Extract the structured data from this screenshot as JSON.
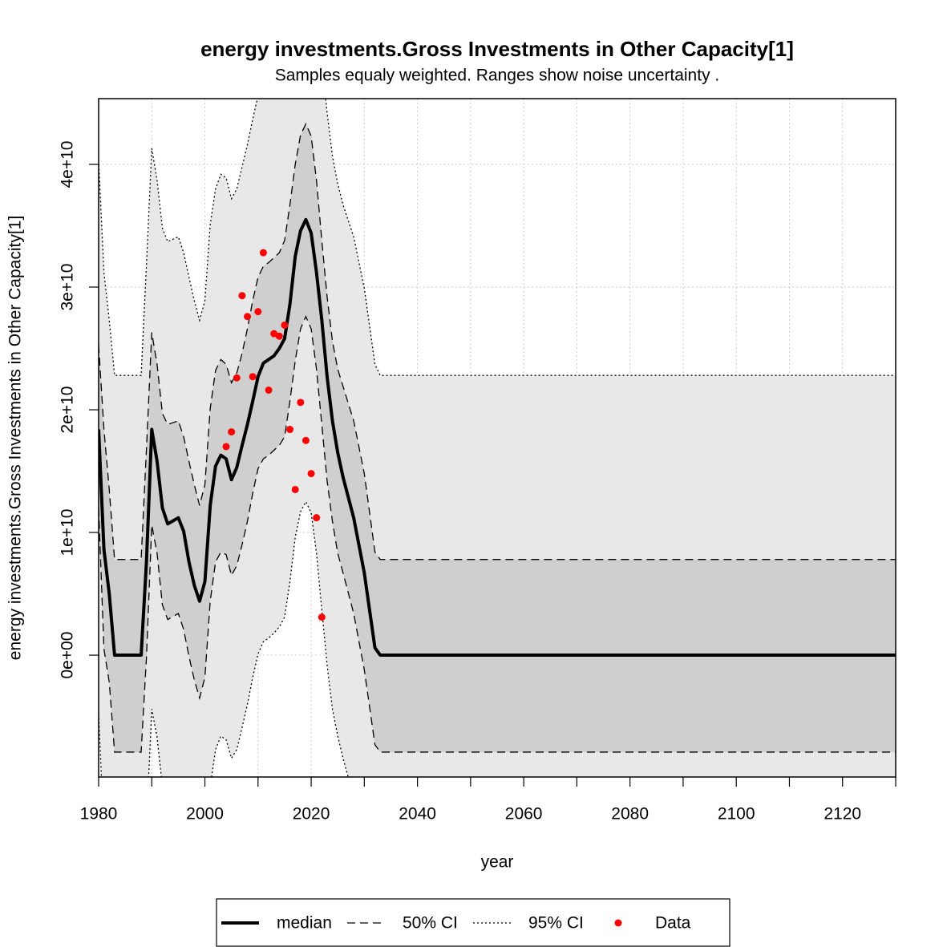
{
  "chart_data": {
    "type": "line",
    "title": "energy investments.Gross Investments in Other Capacity[1]",
    "subtitle": "Samples equaly weighted. Ranges show  noise uncertainty .",
    "x_label": "year",
    "y_label": "energy investments.Gross Investments in Other Capacity[1]",
    "xlim": [
      1980,
      2130
    ],
    "ylim": [
      -9930000000.0,
      45360000000.0
    ],
    "xticks": [
      1980,
      2000,
      2020,
      2040,
      2060,
      2080,
      2100,
      2120
    ],
    "xminor": [
      1990,
      2010,
      2030,
      2050,
      2070,
      2090,
      2110,
      2130
    ],
    "yticks": [
      {
        "value": 0,
        "label": "0e+00"
      },
      {
        "value": 10000000000.0,
        "label": "1e+10"
      },
      {
        "value": 20000000000.0,
        "label": "2e+10"
      },
      {
        "value": 30000000000.0,
        "label": "3e+10"
      },
      {
        "value": 40000000000.0,
        "label": "4e+10"
      }
    ],
    "grid": true,
    "x": [
      1980,
      1981,
      1982,
      1983,
      1988,
      1989,
      1990,
      1991,
      1992,
      1993,
      1995,
      1996,
      1997,
      1998,
      1999,
      2000,
      2001,
      2002,
      2003,
      2004,
      2005,
      2006,
      2007,
      2008,
      2009,
      2010,
      2011,
      2012,
      2013,
      2014,
      2015,
      2016,
      2017,
      2018,
      2019,
      2020,
      2021,
      2022,
      2023,
      2024,
      2025,
      2026,
      2028,
      2030,
      2032,
      2033,
      2130
    ],
    "series": [
      {
        "name": "median",
        "color": "#000000",
        "style": "solid",
        "values": [
          18400000000.0,
          8600000000.0,
          5000000000.0,
          0,
          0,
          7600000000.0,
          18400000000.0,
          15800000000.0,
          12000000000.0,
          10700000000.0,
          11200000000.0,
          10100000000.0,
          7600000000.0,
          5700000000.0,
          4400000000.0,
          6000000000.0,
          12200000000.0,
          15400000000.0,
          16300000000.0,
          16000000000.0,
          14300000000.0,
          15300000000.0,
          17100000000.0,
          18800000000.0,
          20700000000.0,
          22700000000.0,
          23800000000.0,
          24100000000.0,
          24400000000.0,
          25000000000.0,
          25800000000.0,
          28600000000.0,
          32500000000.0,
          34600000000.0,
          35500000000.0,
          34400000000.0,
          31200000000.0,
          27300000000.0,
          22700000000.0,
          19100000000.0,
          16500000000.0,
          14500000000.0,
          11200000000.0,
          6700000000.0,
          600000000.0,
          0,
          0
        ]
      },
      {
        "name": "50% CI",
        "color": "#cccccc",
        "style": "dashed",
        "upper": [
          25300000000.0,
          18400000000.0,
          13500000000.0,
          7800000000.0,
          7800000000.0,
          16800000000.0,
          26300000000.0,
          23700000000.0,
          19700000000.0,
          18800000000.0,
          19100000000.0,
          17800000000.0,
          15800000000.0,
          13900000000.0,
          12200000000.0,
          13900000000.0,
          20100000000.0,
          23200000000.0,
          24100000000.0,
          23700000000.0,
          22200000000.0,
          23000000000.0,
          24600000000.0,
          26600000000.0,
          28900000000.0,
          30800000000.0,
          31700000000.0,
          32000000000.0,
          32400000000.0,
          32800000000.0,
          33800000000.0,
          36700000000.0,
          40000000000.0,
          42400000000.0,
          43300000000.0,
          42300000000.0,
          38700000000.0,
          33800000000.0,
          29200000000.0,
          25600000000.0,
          23300000000.0,
          21900000000.0,
          19100000000.0,
          14800000000.0,
          8400000000.0,
          7800000000.0,
          7800000000.0
        ],
        "lower": [
          12000000000.0,
          500000000.0,
          -2200000000.0,
          -7900000000.0,
          -7900000000.0,
          -200000000.0,
          10600000000.0,
          8300000000.0,
          4100000000.0,
          2900000000.0,
          3400000000.0,
          2100000000.0,
          -100000000.0,
          -2000000000.0,
          -3500000000.0,
          -1800000000.0,
          4400000000.0,
          7600000000.0,
          8400000000.0,
          8200000000.0,
          6500000000.0,
          7300000000.0,
          9000000000.0,
          10900000000.0,
          13200000000.0,
          15200000000.0,
          16000000000.0,
          16300000000.0,
          16700000000.0,
          17100000000.0,
          17800000000.0,
          20700000000.0,
          24000000000.0,
          26600000000.0,
          27600000000.0,
          26600000000.0,
          23300000000.0,
          18800000000.0,
          14200000000.0,
          10900000000.0,
          8300000000.0,
          6700000000.0,
          3400000000.0,
          -1200000000.0,
          -7300000000.0,
          -7900000000.0,
          -7900000000.0
        ]
      },
      {
        "name": "95% CI",
        "color": "#e6e6e6",
        "style": "dotted",
        "upper": [
          40300000000.0,
          31200000000.0,
          27300000000.0,
          22800000000.0,
          22800000000.0,
          31800000000.0,
          41300000000.0,
          38700000000.0,
          34800000000.0,
          33700000000.0,
          34100000000.0,
          32800000000.0,
          30800000000.0,
          28900000000.0,
          27300000000.0,
          28900000000.0,
          35100000000.0,
          38000000000.0,
          39200000000.0,
          38900000000.0,
          37200000000.0,
          38000000000.0,
          39800000000.0,
          41600000000.0,
          43700000000.0,
          45600000000.0,
          46900000000.0,
          47200000000.0,
          47500000000.0,
          47800000000.0,
          48800000000.0,
          51400000000.0,
          54100000000.0,
          56000000000.0,
          57000000000.0,
          56000000000.0,
          52700000000.0,
          48500000000.0,
          44200000000.0,
          40700000000.0,
          38400000000.0,
          36700000000.0,
          34100000000.0,
          29900000000.0,
          23700000000.0,
          22800000000.0,
          22800000000.0
        ],
        "lower": [
          -4800000000.0,
          -14600000000.0,
          -17200000000.0,
          -21800000000.0,
          -21800000000.0,
          -13900000000.0,
          -4400000000.0,
          -6700000000.0,
          -10700000000.0,
          -12000000000.0,
          -11600000000.0,
          -12900000000.0,
          -14900000000.0,
          -16900000000.0,
          -18500000000.0,
          -16900000000.0,
          -10700000000.0,
          -7700000000.0,
          -6600000000.0,
          -6900000000.0,
          -8400000000.0,
          -7700000000.0,
          -5900000000.0,
          -4000000000.0,
          -1800000000.0,
          100000000.0,
          1100000000.0,
          1400000000.0,
          1800000000.0,
          2300000000.0,
          3100000000.0,
          6000000000.0,
          9600000000.0,
          11700000000.0,
          12500000000.0,
          11600000000.0,
          8300000000.0,
          3700000000.0,
          -800000000.0,
          -4400000000.0,
          -6600000000.0,
          -8400000000.0,
          -11600000000.0,
          -15900000000.0,
          -21100000000.0,
          -21800000000.0,
          -21800000000.0
        ]
      },
      {
        "name": "Data",
        "color": "#ff0000",
        "style": "points",
        "x": [
          2004,
          2005,
          2006,
          2007,
          2008,
          2009,
          2010,
          2011,
          2012,
          2013,
          2014,
          2015,
          2016,
          2017,
          2018,
          2019,
          2020,
          2021,
          2022
        ],
        "values": [
          17000000000.0,
          18200000000.0,
          22600000000.0,
          29300000000.0,
          27600000000.0,
          22700000000.0,
          28000000000.0,
          32800000000.0,
          21600000000.0,
          26200000000.0,
          26000000000.0,
          26900000000.0,
          18400000000.0,
          13500000000.0,
          20600000000.0,
          17500000000.0,
          14800000000.0,
          11200000000.0,
          3100000000.0
        ]
      }
    ]
  }
}
